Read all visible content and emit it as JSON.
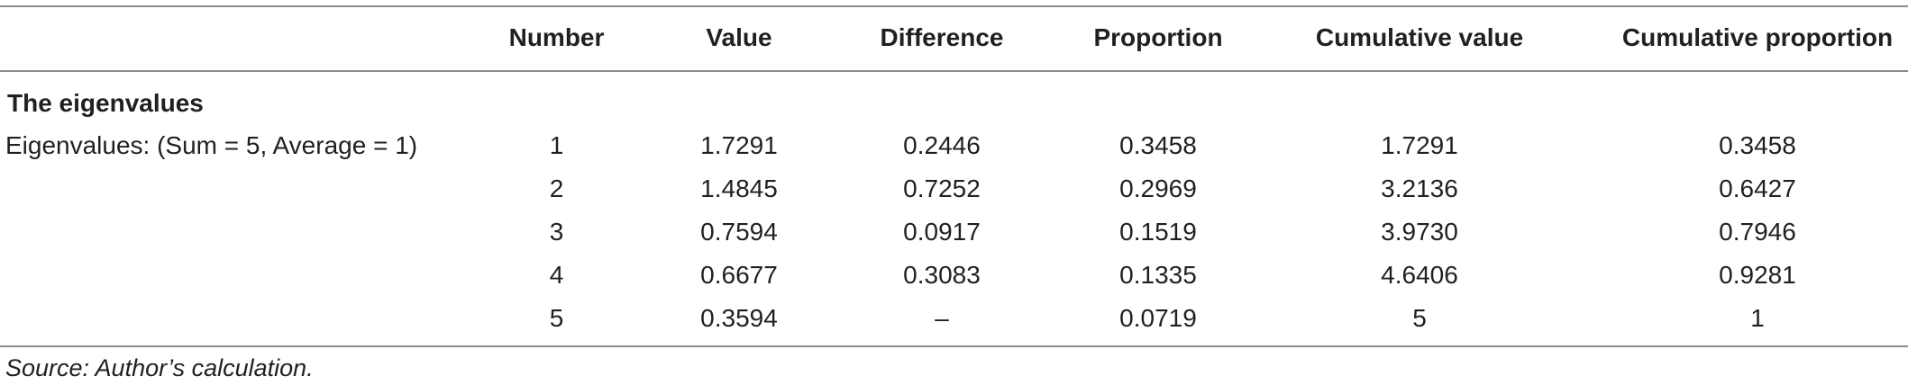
{
  "table": {
    "headers": [
      "Number",
      "Value",
      "Difference",
      "Proportion",
      "Cumulative value",
      "Cumulative proportion"
    ],
    "section_title": "The eigenvalues",
    "row_label": "Eigenvalues: (Sum = 5, Average = 1)",
    "rows": [
      {
        "number": "1",
        "value": "1.7291",
        "difference": "0.2446",
        "proportion": "0.3458",
        "cumulative_value": "1.7291",
        "cumulative_proportion": "0.3458"
      },
      {
        "number": "2",
        "value": "1.4845",
        "difference": "0.7252",
        "proportion": "0.2969",
        "cumulative_value": "3.2136",
        "cumulative_proportion": "0.6427"
      },
      {
        "number": "3",
        "value": "0.7594",
        "difference": "0.0917",
        "proportion": "0.1519",
        "cumulative_value": "3.9730",
        "cumulative_proportion": "0.7946"
      },
      {
        "number": "4",
        "value": "0.6677",
        "difference": "0.3083",
        "proportion": "0.1335",
        "cumulative_value": "4.6406",
        "cumulative_proportion": "0.9281"
      },
      {
        "number": "5",
        "value": "0.3594",
        "difference": "–",
        "proportion": "0.0719",
        "cumulative_value": "5",
        "cumulative_proportion": "1"
      }
    ],
    "source": "Source: Author’s calculation."
  }
}
